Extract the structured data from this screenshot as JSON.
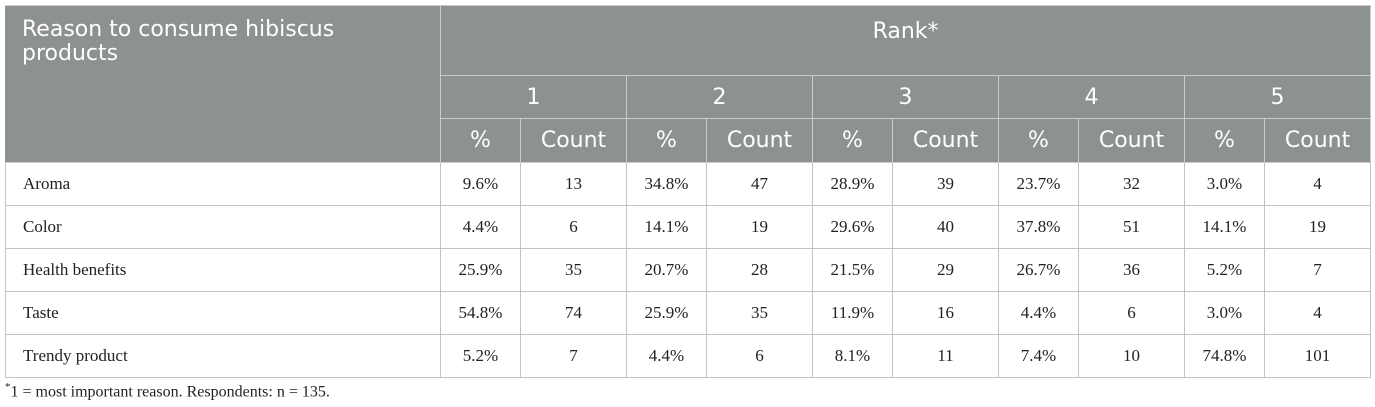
{
  "table": {
    "reason_header": "Reason to consume hibiscus products",
    "rank_header": "Rank*",
    "rank_numbers": [
      "1",
      "2",
      "3",
      "4",
      "5"
    ],
    "pct_label": "%",
    "count_label": "Count",
    "rows": [
      {
        "label": "Aroma",
        "cells": [
          "9.6%",
          "13",
          "34.8%",
          "47",
          "28.9%",
          "39",
          "23.7%",
          "32",
          "3.0%",
          "4"
        ]
      },
      {
        "label": "Color",
        "cells": [
          "4.4%",
          "6",
          "14.1%",
          "19",
          "29.6%",
          "40",
          "37.8%",
          "51",
          "14.1%",
          "19"
        ]
      },
      {
        "label": "Health benefits",
        "cells": [
          "25.9%",
          "35",
          "20.7%",
          "28",
          "21.5%",
          "29",
          "26.7%",
          "36",
          "5.2%",
          "7"
        ]
      },
      {
        "label": "Taste",
        "cells": [
          "54.8%",
          "74",
          "25.9%",
          "35",
          "11.9%",
          "16",
          "4.4%",
          "6",
          "3.0%",
          "4"
        ]
      },
      {
        "label": "Trendy product",
        "cells": [
          "5.2%",
          "7",
          "4.4%",
          "6",
          "8.1%",
          "11",
          "7.4%",
          "10",
          "74.8%",
          "101"
        ]
      }
    ]
  },
  "footnote": {
    "mark": "*",
    "text": "1 = most important reason. Respondents: n = 135."
  },
  "colors": {
    "header_bg": "#8e9191",
    "header_text": "#ffffff",
    "border": "#c3c5c5"
  }
}
